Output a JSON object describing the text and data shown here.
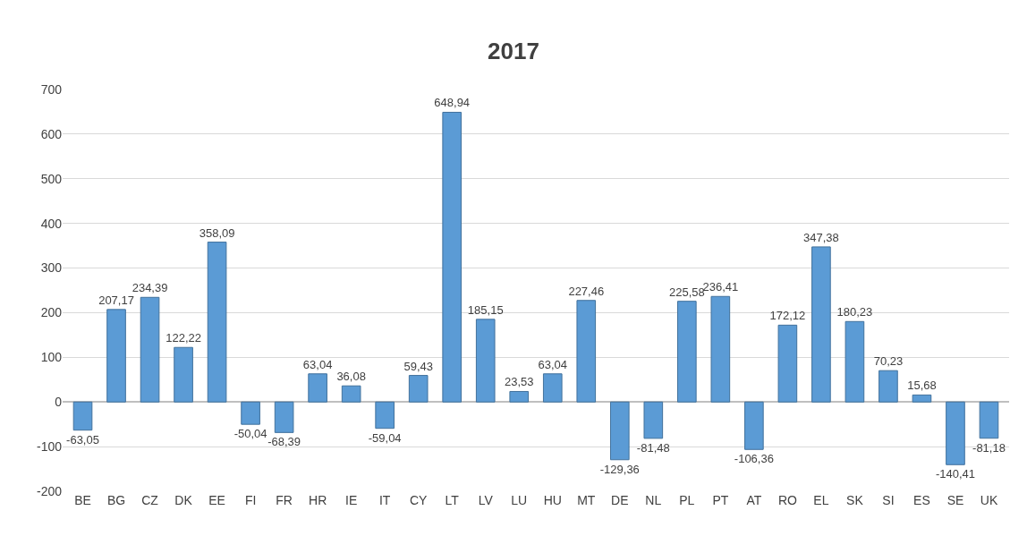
{
  "chart_data": {
    "type": "bar",
    "title": "2017",
    "categories": [
      "BE",
      "BG",
      "CZ",
      "DK",
      "EE",
      "FI",
      "FR",
      "HR",
      "IE",
      "IT",
      "CY",
      "LT",
      "LV",
      "LU",
      "HU",
      "MT",
      "DE",
      "NL",
      "PL",
      "PT",
      "AT",
      "RO",
      "EL",
      "SK",
      "SI",
      "ES",
      "SE",
      "UK"
    ],
    "values": [
      -63.05,
      207.17,
      234.39,
      122.22,
      358.09,
      -50.04,
      -68.39,
      63.04,
      36.08,
      -59.04,
      59.43,
      648.94,
      185.15,
      23.53,
      63.04,
      227.46,
      -129.36,
      -81.48,
      225.58,
      236.41,
      -106.36,
      172.12,
      347.38,
      180.23,
      70.23,
      15.68,
      -140.41,
      -81.18
    ],
    "value_labels": [
      "-63,05",
      "207,17",
      "234,39",
      "122,22",
      "358,09",
      "-50,04",
      "-68,39",
      "63,04",
      "36,08",
      "-59,04",
      "59,43",
      "648,94",
      "185,15",
      "23,53",
      "63,04",
      "227,46",
      "-129,36",
      "-81,48",
      "225,58",
      "236,41",
      "-106,36",
      "172,12",
      "347,38",
      "180,23",
      "70,23",
      "15,68",
      "-140,41",
      "-81,18"
    ],
    "color": "#5b9bd5",
    "ylim": [
      -200,
      700
    ],
    "yticks": [
      -200,
      -100,
      0,
      100,
      200,
      300,
      400,
      500,
      600,
      700
    ],
    "grid": "y",
    "legend": false
  }
}
